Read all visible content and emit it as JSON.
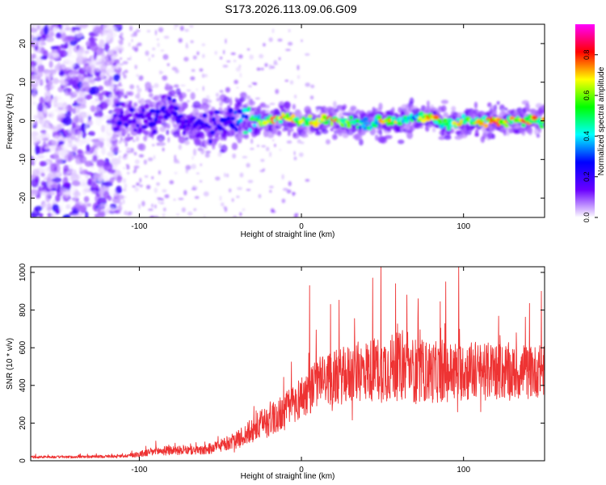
{
  "title": "S173.2026.113.09.06.G09",
  "chart_data": [
    {
      "type": "heatmap",
      "xlabel": "Height of straight line (km)",
      "ylabel": "Frequency (Hz)",
      "xlim": [
        -167,
        150
      ],
      "ylim": [
        -25,
        25
      ],
      "xticks": [
        -100,
        0,
        100
      ],
      "yticks": [
        -20,
        -10,
        0,
        10,
        20
      ],
      "colorbar": {
        "label": "Normalized spectral amplitude",
        "ticks": [
          0.0,
          0.2,
          0.4,
          0.6,
          0.8
        ],
        "range": [
          0,
          0.95
        ],
        "colors": [
          "#ffffff",
          "#6a00ff",
          "#0000ff",
          "#00ffff",
          "#00ff00",
          "#ffff00",
          "#ff0000",
          "#ff00ff"
        ]
      },
      "ridge": {
        "x": [
          -115,
          -100,
          -90,
          -80,
          -70,
          -60,
          -50,
          -40,
          -30,
          -20,
          -10,
          0,
          10,
          20,
          30,
          40,
          50,
          60,
          70,
          80,
          90,
          100,
          110,
          120,
          130,
          140,
          150
        ],
        "freq": [
          0.5,
          0,
          1,
          3,
          -1,
          -1,
          -1,
          1,
          0,
          0,
          1,
          0,
          0,
          0,
          0,
          -1,
          0,
          0,
          1,
          1,
          -1,
          0,
          0,
          0,
          0,
          0,
          0
        ],
        "amplitude": [
          0.22,
          0.22,
          0.24,
          0.25,
          0.22,
          0.22,
          0.24,
          0.32,
          0.55,
          0.72,
          0.78,
          0.68,
          0.7,
          0.85,
          0.6,
          0.5,
          0.75,
          0.7,
          0.55,
          0.85,
          0.6,
          0.75,
          0.7,
          0.9,
          0.75,
          0.85,
          0.7
        ]
      }
    },
    {
      "type": "line",
      "xlabel": "Height of straight line (km)",
      "ylabel": "SNR (10 * v/v)",
      "xlim": [
        -167,
        150
      ],
      "ylim": [
        0,
        1030
      ],
      "xticks": [
        -100,
        0,
        100
      ],
      "yticks": [
        0,
        200,
        400,
        600,
        800,
        1000
      ],
      "color": "#ee3333",
      "envelope": {
        "x": [
          -167,
          -140,
          -110,
          -100,
          -90,
          -80,
          -70,
          -60,
          -50,
          -40,
          -30,
          -20,
          -10,
          -5,
          0,
          5,
          10,
          20,
          30,
          40,
          50,
          60,
          70,
          80,
          90,
          100,
          110,
          120,
          130,
          140,
          150
        ],
        "mean": [
          20,
          20,
          25,
          35,
          50,
          55,
          55,
          55,
          80,
          110,
          160,
          220,
          260,
          300,
          340,
          370,
          420,
          440,
          460,
          480,
          490,
          500,
          480,
          470,
          470,
          480,
          470,
          480,
          460,
          470,
          480
        ],
        "spread": [
          12,
          12,
          15,
          30,
          45,
          45,
          40,
          45,
          60,
          80,
          130,
          170,
          180,
          200,
          210,
          230,
          240,
          260,
          290,
          300,
          330,
          330,
          310,
          300,
          290,
          300,
          280,
          280,
          260,
          260,
          250
        ]
      },
      "peaks": [
        {
          "x": 49,
          "y": 1030
        },
        {
          "x": 97,
          "y": 1030
        },
        {
          "x": 44,
          "y": 970
        },
        {
          "x": 89,
          "y": 950
        },
        {
          "x": 5,
          "y": 930
        },
        {
          "x": 58,
          "y": 940
        },
        {
          "x": 65,
          "y": 880
        },
        {
          "x": 72,
          "y": 860
        },
        {
          "x": 18,
          "y": 830
        },
        {
          "x": 148,
          "y": 900
        }
      ]
    }
  ]
}
